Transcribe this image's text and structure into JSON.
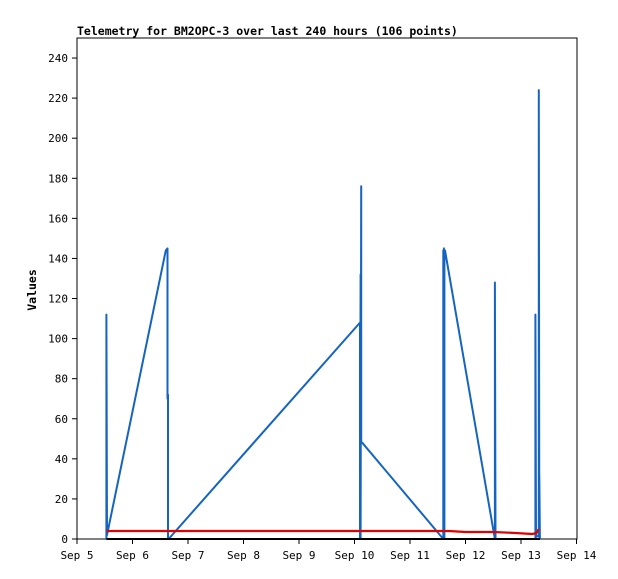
{
  "chart_data": {
    "type": "line",
    "title": "Telemetry for BM2OPC-3 over last 240 hours (106 points)",
    "xlabel": "",
    "ylabel": "Values",
    "ylim": [
      0,
      250
    ],
    "yticks": [
      0,
      20,
      40,
      60,
      80,
      100,
      120,
      140,
      160,
      180,
      200,
      220,
      240
    ],
    "xlim": [
      0,
      9
    ],
    "xtick_labels": [
      "Sep 5",
      "Sep 6",
      "Sep 7",
      "Sep 8",
      "Sep 9",
      "Sep 10",
      "Sep 11",
      "Sep 12",
      "Sep 13",
      "Sep 14"
    ],
    "x_unit": "days since Sep 5 00:00",
    "grid": false,
    "legend": "none",
    "series": [
      {
        "color": "#1565c0",
        "x": [
          0.53,
          0.53,
          0.54,
          1.6,
          1.63,
          1.63,
          1.64,
          1.64,
          1.65,
          5.1,
          5.1,
          5.11,
          5.11,
          5.12,
          5.12,
          5.13,
          5.13,
          5.14,
          6.6,
          6.6,
          6.61,
          6.61,
          6.62,
          6.62,
          6.63,
          7.53,
          7.53,
          7.54,
          8.26,
          8.26,
          8.27,
          8.32,
          8.32,
          8.33,
          8.33,
          8.34
        ],
        "y": [
          0,
          112,
          2,
          144,
          145,
          70,
          72,
          0,
          0,
          108,
          0,
          132,
          0,
          176,
          48,
          48,
          48,
          48,
          0,
          144,
          0,
          145,
          0,
          144,
          144,
          0,
          128,
          0,
          0,
          112,
          1,
          2,
          224,
          0,
          32,
          0
        ]
      },
      {
        "color": "#e00000",
        "x": [
          0.53,
          1.0,
          2.0,
          3.0,
          4.0,
          5.0,
          6.0,
          6.7,
          7.0,
          7.5,
          7.9,
          8.2,
          8.28,
          8.32
        ],
        "y": [
          4,
          4,
          4,
          4,
          4,
          4,
          4,
          4,
          3.5,
          3.5,
          3,
          2.5,
          3,
          5
        ]
      },
      {
        "color": "#000000",
        "x": [
          0.53,
          8.34
        ],
        "y": [
          0,
          0
        ]
      }
    ]
  }
}
